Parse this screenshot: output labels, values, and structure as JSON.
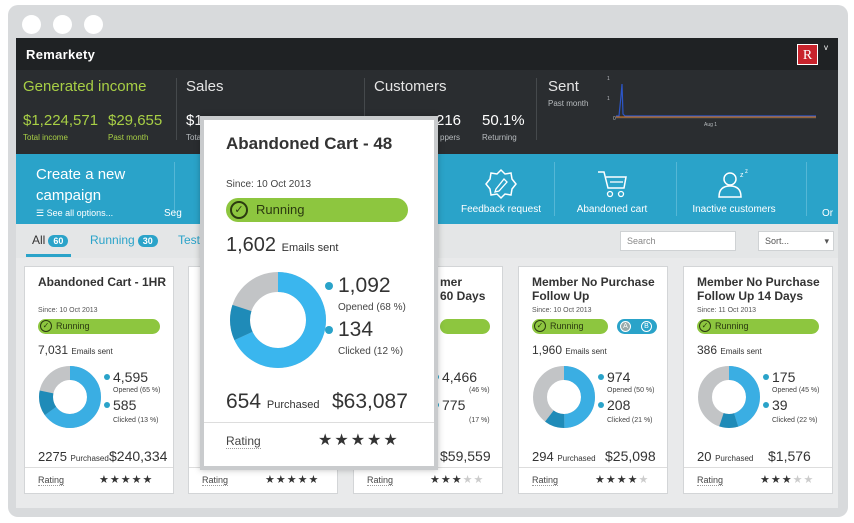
{
  "app": {
    "logo": "Remarkety",
    "avatar_letter": "R",
    "avatar_caret": "v"
  },
  "stats": {
    "income": {
      "title": "Generated income",
      "total": "$1,224,571",
      "total_label": "Total income",
      "month": "$29,655",
      "month_label": "Past month"
    },
    "sales": {
      "title": "Sales",
      "total": "$1",
      "total_label": "Tota"
    },
    "customers": {
      "title": "Customers",
      "shoppers": "216",
      "shoppers_label": "ppers",
      "returning": "50.1%",
      "returning_label": "Returning"
    },
    "sent": {
      "title": "Sent",
      "sub": "Past month",
      "y_ticks": [
        "1",
        "1",
        "0"
      ],
      "x_tick": "Aug 1"
    }
  },
  "actions": {
    "create_title": "Create a new campaign",
    "see_all": "☰ See all options...",
    "items": [
      {
        "label": "Seg",
        "icon": "segment-icon"
      },
      {
        "label": "Feedback request",
        "icon": "feedback-badge-icon"
      },
      {
        "label": "Abandoned cart",
        "icon": "shopping-cart-icon"
      },
      {
        "label": "Inactive customers",
        "icon": "sleeping-user-icon"
      },
      {
        "label": "Or",
        "icon": ""
      }
    ]
  },
  "tabs": {
    "items": [
      {
        "label": "All",
        "count": "60"
      },
      {
        "label": "Running",
        "count": "30"
      },
      {
        "label": "Testi",
        "count": ""
      }
    ],
    "search_placeholder": "Search",
    "sort_label": "Sort..."
  },
  "cards": [
    {
      "title": "Abandoned Cart - 1HR",
      "since": "Since: 10 Oct 2013",
      "status": "Running",
      "emails": "7,031",
      "emails_label": "Emails sent",
      "opened": "4,595",
      "opened_label": "Opened (65 %)",
      "clicked": "585",
      "clicked_label": "Clicked (13 %)",
      "purchased": "2275",
      "purchased_label": "Purchased",
      "revenue": "$240,334",
      "rating_label": "Rating",
      "stars": 5
    },
    {
      "title": "",
      "since": "",
      "status": "",
      "emails": "",
      "emails_label": "",
      "opened": "",
      "opened_label": "",
      "clicked": "",
      "clicked_label": "",
      "purchased": "",
      "purchased_label": "",
      "revenue": "",
      "rating_label": "Rating",
      "stars": 5
    },
    {
      "title": "mer\n60 Days",
      "since": "",
      "status": "",
      "emails": "",
      "emails_label": "",
      "opened": "4,466",
      "opened_label": "(46 %)",
      "clicked": "775",
      "clicked_label": "(17 %)",
      "purchased": "",
      "purchased_label": "",
      "revenue": "$59,559",
      "rating_label": "Rating",
      "stars": 3
    },
    {
      "title": "Member No Purchase\nFollow Up",
      "since": "Since: 10 Oct 2013",
      "status": "Running",
      "emails": "1,960",
      "emails_label": "Emails sent",
      "opened": "974",
      "opened_label": "Opened (50 %)",
      "clicked": "208",
      "clicked_label": "Clicked (21 %)",
      "purchased": "294",
      "purchased_label": "Purchased",
      "revenue": "$25,098",
      "rating_label": "Rating",
      "stars": 4,
      "ab": [
        "A",
        "B"
      ]
    },
    {
      "title": "Member No Purchase\nFollow Up 14 Days",
      "since": "Since: 11 Oct 2013",
      "status": "Running",
      "emails": "386",
      "emails_label": "Emails sent",
      "opened": "175",
      "opened_label": "Opened (45 %)",
      "clicked": "39",
      "clicked_label": "Clicked (22 %)",
      "purchased": "20",
      "purchased_label": "Purchased",
      "revenue": "$1,576",
      "rating_label": "Rating",
      "stars": 3
    }
  ],
  "popup": {
    "title": "Abandoned Cart - 48",
    "since": "Since: 10 Oct 2013",
    "status": "Running",
    "emails": "1,602",
    "emails_label": "Emails sent",
    "opened": "1,092",
    "opened_label": "Opened (68 %)",
    "clicked": "134",
    "clicked_label": "Clicked (12 %)",
    "purchased": "654",
    "purchased_label": "Purchased",
    "revenue": "$63,087",
    "rating_label": "Rating",
    "stars": 5,
    "opened_fraction": 0.68,
    "clicked_fraction": 0.12
  },
  "colors": {
    "accent": "#2aa3c9",
    "running": "#8dc63f",
    "income": "#a8cf45",
    "topbar": "#1f2224"
  }
}
